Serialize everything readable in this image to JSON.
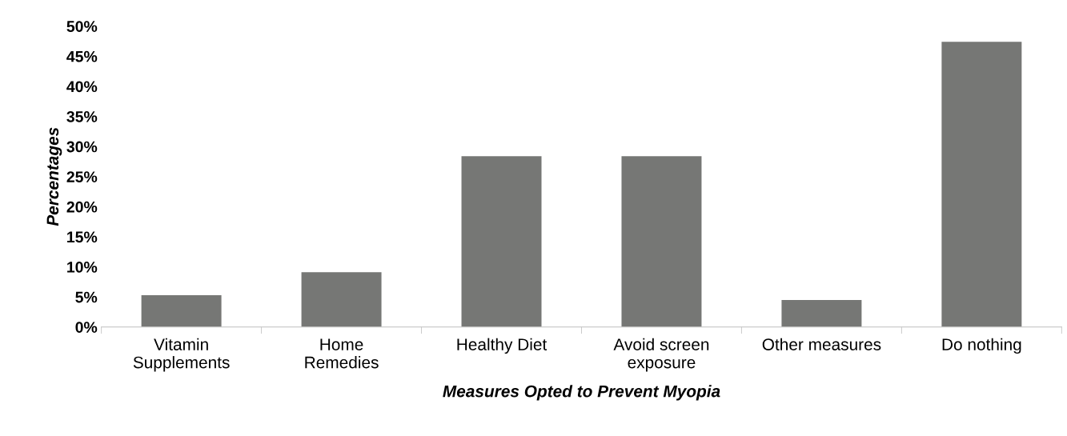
{
  "chart_data": {
    "type": "bar",
    "xlabel": "Measures Opted to Prevent Myopia",
    "ylabel": "Percentages",
    "categories": [
      "Vitamin\nSupplements",
      "Home\nRemedies",
      "Healthy Diet",
      "Avoid screen\nexposure",
      "Other measures",
      "Do nothing"
    ],
    "values": [
      5.3,
      9.1,
      28.4,
      28.4,
      4.5,
      47.4
    ],
    "color": "#767775",
    "ylim": [
      0,
      50
    ],
    "yticks": [
      {
        "value": 0,
        "label": "0%"
      },
      {
        "value": 5,
        "label": "5%"
      },
      {
        "value": 10,
        "label": "10%"
      },
      {
        "value": 15,
        "label": "15%"
      },
      {
        "value": 20,
        "label": "20%"
      },
      {
        "value": 25,
        "label": "25%"
      },
      {
        "value": 30,
        "label": "30%"
      },
      {
        "value": 35,
        "label": "35%"
      },
      {
        "value": 40,
        "label": "40%"
      },
      {
        "value": 45,
        "label": "45%"
      },
      {
        "value": 50,
        "label": "50%"
      }
    ],
    "grid": false,
    "legend": false
  }
}
